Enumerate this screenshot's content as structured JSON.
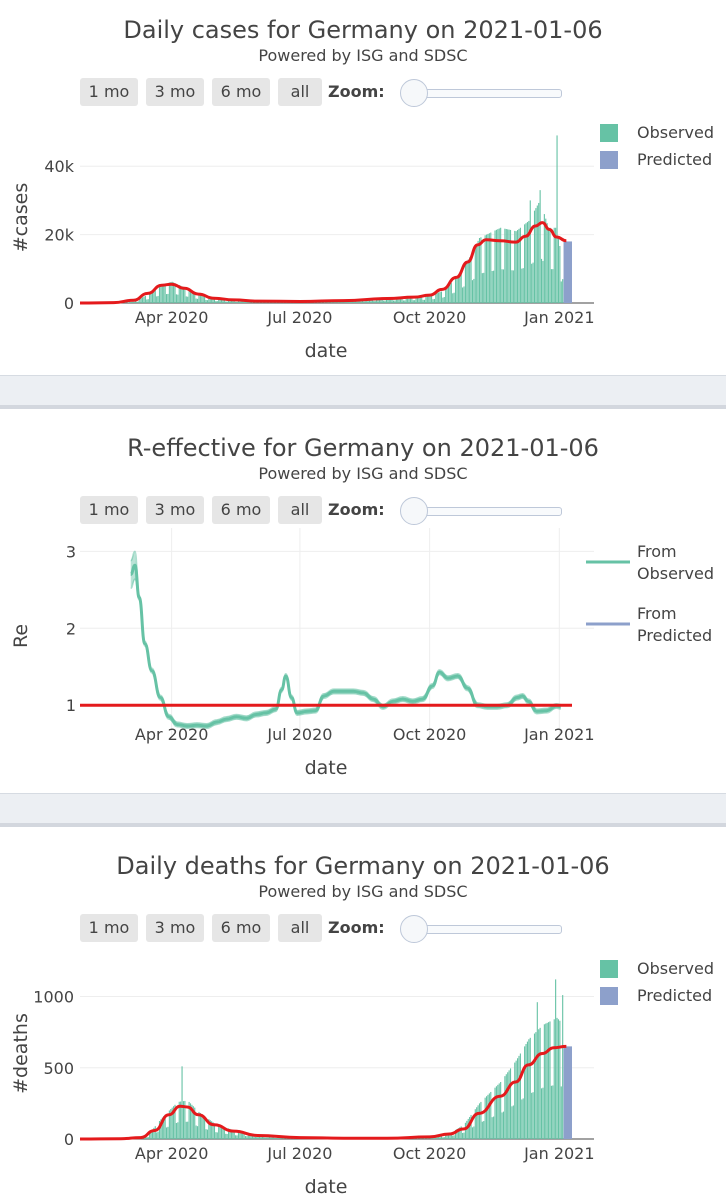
{
  "controls": {
    "buttons": [
      "1 mo",
      "3 mo",
      "6 mo",
      "all"
    ],
    "zoom_label": "Zoom:"
  },
  "colors": {
    "observed": "#66c2a5",
    "predicted": "#8da0cb",
    "red": "#e41a1c",
    "grid": "#eeeeee"
  },
  "x_ticks": [
    "Apr 2020",
    "Jul 2020",
    "Oct 2020",
    "Jan 2021"
  ],
  "chart_data": [
    {
      "type": "bar",
      "title": "Daily cases for Germany on 2021-01-06",
      "subtitle": "Powered by ISG and SDSC",
      "xlabel": "date",
      "ylabel": "#cases",
      "y_ticks": [
        "0",
        "20k",
        "40k"
      ],
      "ylim": [
        0,
        50000
      ],
      "legend": [
        "Observed",
        "Predicted"
      ],
      "series": [
        {
          "name": "Observed",
          "anchors": [
            [
              "2020-01-27",
              0
            ],
            [
              "2020-02-25",
              50
            ],
            [
              "2020-03-05",
              400
            ],
            [
              "2020-03-15",
              2500
            ],
            [
              "2020-03-25",
              5500
            ],
            [
              "2020-04-01",
              6200
            ],
            [
              "2020-04-10",
              4500
            ],
            [
              "2020-04-20",
              2500
            ],
            [
              "2020-05-01",
              1300
            ],
            [
              "2020-05-15",
              800
            ],
            [
              "2020-06-01",
              500
            ],
            [
              "2020-06-20",
              600
            ],
            [
              "2020-07-15",
              500
            ],
            [
              "2020-08-10",
              1000
            ],
            [
              "2020-08-25",
              1500
            ],
            [
              "2020-09-15",
              1700
            ],
            [
              "2020-10-01",
              2200
            ],
            [
              "2020-10-10",
              3500
            ],
            [
              "2020-10-20",
              7500
            ],
            [
              "2020-10-30",
              14000
            ],
            [
              "2020-11-05",
              19000
            ],
            [
              "2020-11-20",
              22000
            ],
            [
              "2020-12-01",
              21000
            ],
            [
              "2020-12-10",
              24000
            ],
            [
              "2020-12-18",
              30000
            ],
            [
              "2020-12-24",
              22000
            ],
            [
              "2020-12-30",
              22000
            ],
            [
              "2021-01-02",
              14000
            ],
            [
              "2021-01-04",
              17000
            ]
          ],
          "spikes": [
            [
              "2020-12-30",
              49000
            ],
            [
              "2020-12-18",
              33000
            ],
            [
              "2020-12-11",
              30000
            ]
          ]
        },
        {
          "name": "Predicted",
          "range": [
            "2021-01-04",
            "2021-01-06"
          ],
          "value": 18000
        },
        {
          "name": "Smoothed",
          "points": [
            [
              "2020-01-27",
              0
            ],
            [
              "2020-02-20",
              100
            ],
            [
              "2020-03-05",
              800
            ],
            [
              "2020-03-15",
              2800
            ],
            [
              "2020-03-25",
              5200
            ],
            [
              "2020-04-01",
              5500
            ],
            [
              "2020-04-10",
              4300
            ],
            [
              "2020-04-20",
              2600
            ],
            [
              "2020-05-01",
              1400
            ],
            [
              "2020-05-15",
              900
            ],
            [
              "2020-06-01",
              550
            ],
            [
              "2020-07-01",
              450
            ],
            [
              "2020-08-01",
              700
            ],
            [
              "2020-09-01",
              1300
            ],
            [
              "2020-09-20",
              1700
            ],
            [
              "2020-10-01",
              2300
            ],
            [
              "2020-10-10",
              4000
            ],
            [
              "2020-10-20",
              7500
            ],
            [
              "2020-10-28",
              12000
            ],
            [
              "2020-11-04",
              17000
            ],
            [
              "2020-11-10",
              18500
            ],
            [
              "2020-11-20",
              18200
            ],
            [
              "2020-12-01",
              17800
            ],
            [
              "2020-12-08",
              19500
            ],
            [
              "2020-12-15",
              22500
            ],
            [
              "2020-12-20",
              23500
            ],
            [
              "2020-12-25",
              21500
            ],
            [
              "2020-12-30",
              19300
            ],
            [
              "2021-01-06",
              18200
            ]
          ]
        }
      ]
    },
    {
      "type": "line",
      "title": "R-effective for Germany on 2021-01-06",
      "subtitle": "Powered by ISG and SDSC",
      "xlabel": "date",
      "ylabel": "Re",
      "y_ticks": [
        "1",
        "2",
        "3"
      ],
      "ylim": [
        0.6,
        3.2
      ],
      "legend": [
        "From Observed",
        "From Predicted"
      ],
      "series": [
        {
          "name": "From Observed",
          "points": [
            [
              "2020-03-03",
              2.7
            ],
            [
              "2020-03-06",
              2.82
            ],
            [
              "2020-03-09",
              2.4
            ],
            [
              "2020-03-13",
              1.8
            ],
            [
              "2020-03-18",
              1.45
            ],
            [
              "2020-03-24",
              1.1
            ],
            [
              "2020-03-30",
              0.85
            ],
            [
              "2020-04-05",
              0.75
            ],
            [
              "2020-04-12",
              0.73
            ],
            [
              "2020-04-19",
              0.74
            ],
            [
              "2020-04-26",
              0.73
            ],
            [
              "2020-05-03",
              0.78
            ],
            [
              "2020-05-10",
              0.82
            ],
            [
              "2020-05-17",
              0.85
            ],
            [
              "2020-05-24",
              0.83
            ],
            [
              "2020-05-31",
              0.88
            ],
            [
              "2020-06-07",
              0.9
            ],
            [
              "2020-06-14",
              0.95
            ],
            [
              "2020-06-18",
              1.2
            ],
            [
              "2020-06-21",
              1.38
            ],
            [
              "2020-06-25",
              1.1
            ],
            [
              "2020-06-29",
              0.9
            ],
            [
              "2020-07-06",
              0.92
            ],
            [
              "2020-07-12",
              0.93
            ],
            [
              "2020-07-18",
              1.12
            ],
            [
              "2020-07-25",
              1.18
            ],
            [
              "2020-08-01",
              1.18
            ],
            [
              "2020-08-08",
              1.18
            ],
            [
              "2020-08-15",
              1.16
            ],
            [
              "2020-08-22",
              1.08
            ],
            [
              "2020-08-29",
              0.98
            ],
            [
              "2020-09-05",
              1.05
            ],
            [
              "2020-09-12",
              1.08
            ],
            [
              "2020-09-19",
              1.05
            ],
            [
              "2020-09-26",
              1.08
            ],
            [
              "2020-10-03",
              1.25
            ],
            [
              "2020-10-08",
              1.43
            ],
            [
              "2020-10-14",
              1.35
            ],
            [
              "2020-10-21",
              1.38
            ],
            [
              "2020-10-28",
              1.22
            ],
            [
              "2020-11-04",
              1.0
            ],
            [
              "2020-11-11",
              0.98
            ],
            [
              "2020-11-18",
              0.98
            ],
            [
              "2020-11-25",
              1.0
            ],
            [
              "2020-12-02",
              1.1
            ],
            [
              "2020-12-06",
              1.12
            ],
            [
              "2020-12-10",
              1.05
            ],
            [
              "2020-12-16",
              0.92
            ],
            [
              "2020-12-23",
              0.93
            ],
            [
              "2020-12-30",
              0.99
            ],
            [
              "2021-01-02",
              0.98
            ]
          ],
          "band": 0.03,
          "band_early": 0.18
        },
        {
          "name": "Reference",
          "value": 1
        }
      ]
    },
    {
      "type": "bar",
      "title": "Daily deaths for Germany on 2021-01-06",
      "subtitle": "Powered by ISG and SDSC",
      "xlabel": "date",
      "ylabel": "#deaths",
      "y_ticks": [
        "0",
        "500",
        "1000"
      ],
      "ylim": [
        0,
        1200
      ],
      "legend": [
        "Observed",
        "Predicted"
      ],
      "series": [
        {
          "name": "Observed",
          "anchors": [
            [
              "2020-01-27",
              0
            ],
            [
              "2020-03-05",
              0
            ],
            [
              "2020-03-15",
              30
            ],
            [
              "2020-03-25",
              150
            ],
            [
              "2020-04-05",
              260
            ],
            [
              "2020-04-12",
              270
            ],
            [
              "2020-04-20",
              190
            ],
            [
              "2020-05-01",
              110
            ],
            [
              "2020-05-15",
              60
            ],
            [
              "2020-06-01",
              30
            ],
            [
              "2020-06-20",
              10
            ],
            [
              "2020-08-01",
              5
            ],
            [
              "2020-09-15",
              5
            ],
            [
              "2020-10-05",
              15
            ],
            [
              "2020-10-15",
              40
            ],
            [
              "2020-10-25",
              100
            ],
            [
              "2020-11-05",
              250
            ],
            [
              "2020-11-20",
              400
            ],
            [
              "2020-12-01",
              550
            ],
            [
              "2020-12-10",
              700
            ],
            [
              "2020-12-20",
              800
            ],
            [
              "2020-12-30",
              850
            ],
            [
              "2021-01-04",
              800
            ]
          ],
          "spikes": [
            [
              "2020-04-08",
              510
            ],
            [
              "2020-12-29",
              1120
            ],
            [
              "2020-12-16",
              960
            ],
            [
              "2021-01-03",
              1010
            ]
          ]
        },
        {
          "name": "Predicted",
          "range": [
            "2021-01-04",
            "2021-01-06"
          ],
          "value": 650
        },
        {
          "name": "Smoothed",
          "points": [
            [
              "2020-01-27",
              0
            ],
            [
              "2020-02-25",
              2
            ],
            [
              "2020-03-10",
              10
            ],
            [
              "2020-03-20",
              60
            ],
            [
              "2020-03-30",
              170
            ],
            [
              "2020-04-07",
              230
            ],
            [
              "2020-04-12",
              225
            ],
            [
              "2020-04-20",
              170
            ],
            [
              "2020-05-01",
              100
            ],
            [
              "2020-05-15",
              55
            ],
            [
              "2020-06-01",
              25
            ],
            [
              "2020-07-01",
              10
            ],
            [
              "2020-08-01",
              5
            ],
            [
              "2020-09-01",
              5
            ],
            [
              "2020-10-01",
              15
            ],
            [
              "2020-10-15",
              35
            ],
            [
              "2020-10-25",
              70
            ],
            [
              "2020-11-05",
              180
            ],
            [
              "2020-11-20",
              300
            ],
            [
              "2020-12-01",
              400
            ],
            [
              "2020-12-10",
              520
            ],
            [
              "2020-12-20",
              600
            ],
            [
              "2020-12-28",
              640
            ],
            [
              "2021-01-06",
              650
            ]
          ]
        }
      ]
    }
  ]
}
